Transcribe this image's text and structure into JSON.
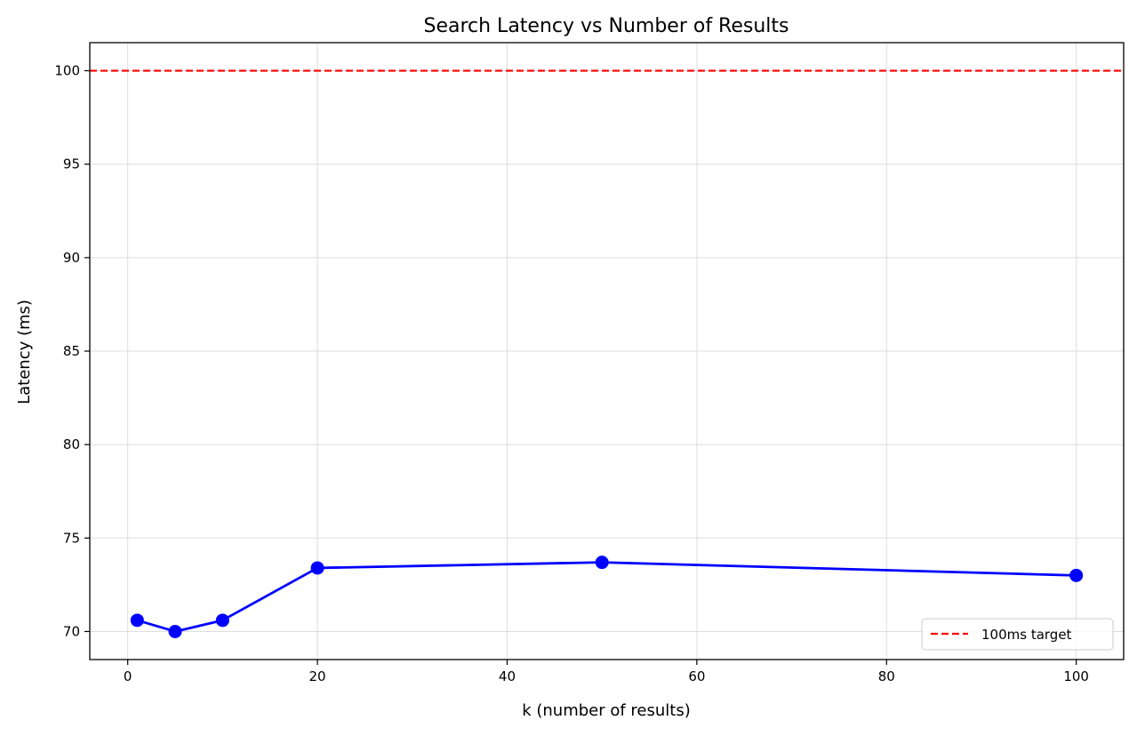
{
  "chart_data": {
    "type": "line",
    "title": "Search Latency vs Number of Results",
    "xlabel": "k (number of results)",
    "ylabel": "Latency (ms)",
    "xlim": [
      -4,
      105
    ],
    "ylim": [
      68.5,
      101.5
    ],
    "xticks": [
      0,
      20,
      40,
      60,
      80,
      100
    ],
    "yticks": [
      70,
      75,
      80,
      85,
      90,
      95,
      100
    ],
    "grid": true,
    "legend_position": "bottom-right",
    "series": [
      {
        "color": "#0000ff",
        "marker": "circle",
        "x": [
          1,
          5,
          10,
          20,
          50,
          100
        ],
        "y": [
          70.6,
          70.0,
          70.6,
          73.4,
          73.7,
          73.0
        ]
      }
    ],
    "reference_lines": [
      {
        "name": "100ms target",
        "orientation": "horizontal",
        "y": 100,
        "color": "#ff0000",
        "style": "dashed"
      }
    ]
  }
}
